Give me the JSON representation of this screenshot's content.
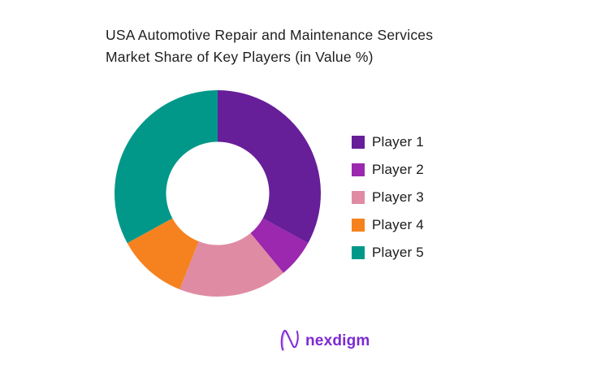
{
  "header": {
    "title_line1": "USA Automotive Repair and Maintenance Services",
    "title_line2": "Market Share of Key Players (in Value %)"
  },
  "chart_data": {
    "type": "pie",
    "subtype": "donut",
    "title": "USA Automotive Repair and Maintenance Services Market Share of Key Players (in Value %)",
    "categories": [
      "Player 1",
      "Player 2",
      "Player 3",
      "Player 4",
      "Player 5"
    ],
    "values": [
      33,
      6,
      17,
      11,
      33
    ],
    "unit": "percent",
    "colors": [
      "#671E99",
      "#9B28AE",
      "#E08BA4",
      "#F5821E",
      "#029889"
    ],
    "start_angle_deg": 0,
    "direction": "clockwise",
    "inner_radius_ratio": 0.5,
    "data_labels_shown": false,
    "legend_position": "right"
  },
  "footer": {
    "logo_text": "nexdigm",
    "logo_color": "#7D2AD1",
    "logo_accent_color": "#C77DFF"
  }
}
